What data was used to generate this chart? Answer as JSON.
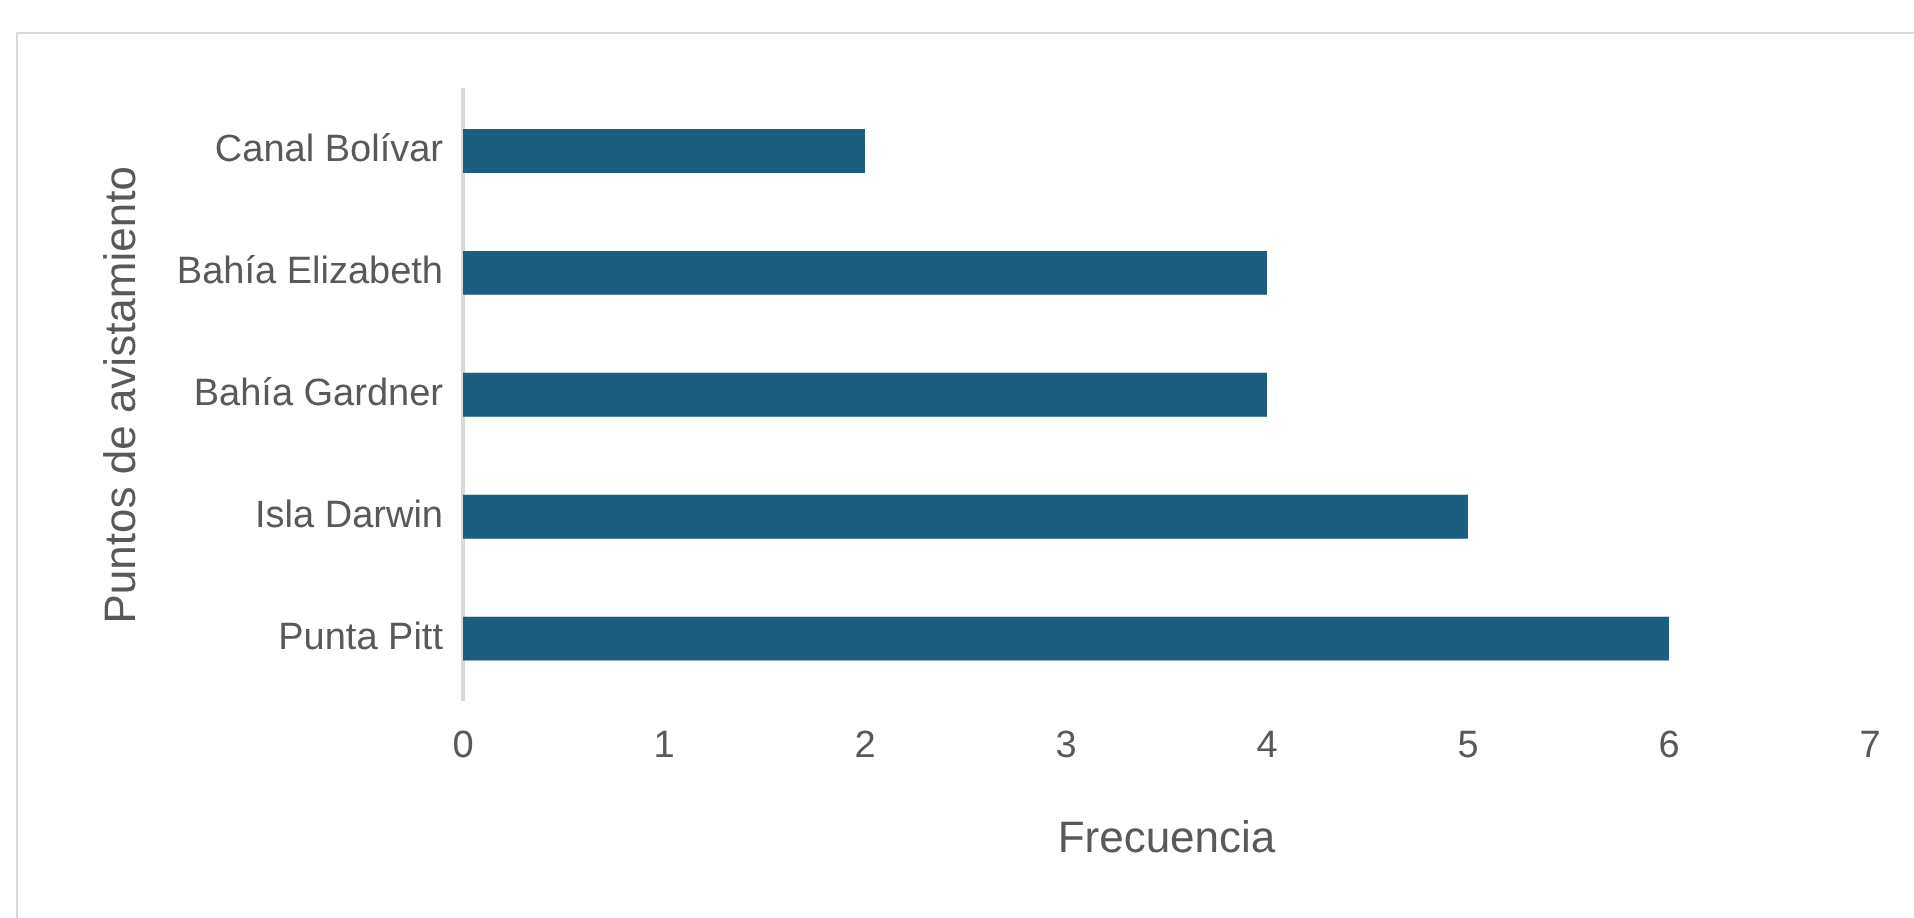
{
  "chart_data": {
    "type": "bar",
    "orientation": "horizontal",
    "xlabel": "Frecuencia",
    "ylabel": "Puntos de avistamiento",
    "categories": [
      "Canal Bolívar",
      "Bahía Elizabeth",
      "Bahía Gardner",
      "Isla Darwin",
      "Punta Pitt"
    ],
    "values": [
      2,
      4,
      4,
      5,
      6
    ],
    "color": "#1b5e80",
    "xlim": [
      0,
      7
    ],
    "xticks": [
      0,
      1,
      2,
      3,
      4,
      5,
      6,
      7
    ],
    "grid": false,
    "legend": false
  }
}
